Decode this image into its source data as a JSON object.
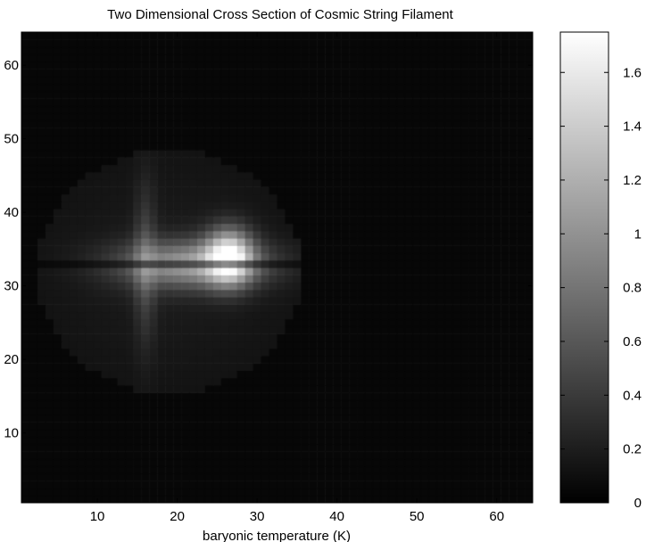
{
  "chart_data": {
    "type": "heatmap",
    "title": "Two Dimensional Cross Section of Cosmic String Filament",
    "xlabel": "baryonic temperature (K)",
    "ylabel": "",
    "xlim": [
      1,
      64
    ],
    "ylim": [
      1,
      64
    ],
    "x_ticks": [
      10,
      20,
      30,
      40,
      50,
      60
    ],
    "y_ticks": [
      10,
      20,
      30,
      40,
      50,
      60
    ],
    "colormap": "gray",
    "colorbar": {
      "range": [
        0,
        1.75
      ],
      "ticks": [
        0,
        0.2,
        0.4,
        0.6,
        0.8,
        1,
        1.2,
        1.4,
        1.6
      ]
    },
    "features": {
      "disk": {
        "center": [
          19,
          32
        ],
        "radius": 16.5,
        "value": 0.2
      },
      "filament_axis_y": 33,
      "bright_lobe": {
        "center": [
          26.5,
          34
        ],
        "value": 1.65
      },
      "inner_dark_band_y": 33
    },
    "background_value": 0.05
  }
}
